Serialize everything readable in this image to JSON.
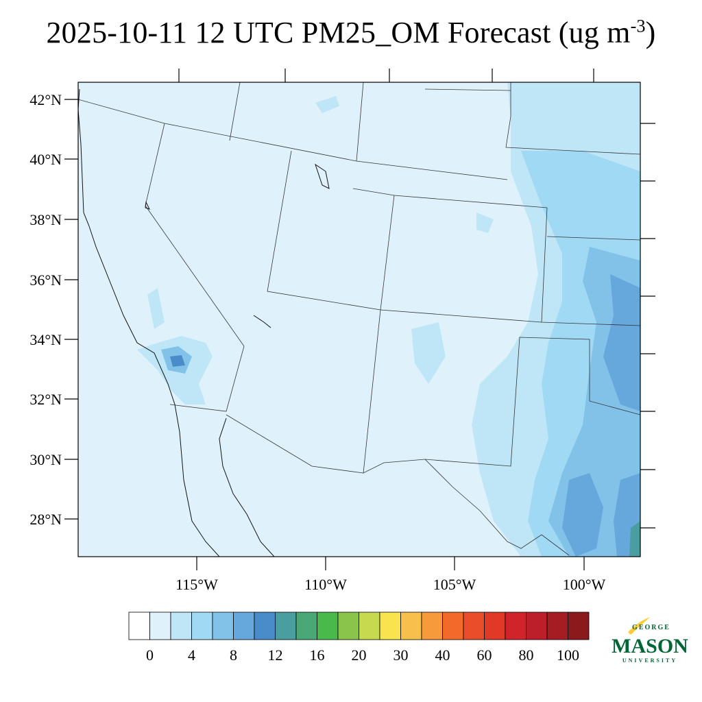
{
  "title": {
    "text": "2025-10-11 12 UTC PM25_OM Forecast (ug m",
    "exponent": "-3",
    "close": ")"
  },
  "map": {
    "lat_labels": [
      "42°N",
      "40°N",
      "38°N",
      "36°N",
      "34°N",
      "32°N",
      "30°N",
      "28°N"
    ],
    "lon_labels": [
      "115°W",
      "110°W",
      "105°W",
      "100°W"
    ]
  },
  "colorbar": {
    "colors": [
      "#ffffff",
      "#dff2fb",
      "#bfe6f7",
      "#9fd9f3",
      "#82c2e8",
      "#66a7dc",
      "#4a8cc9",
      "#4a9ea0",
      "#4aa876",
      "#48b94a",
      "#8ac44a",
      "#c6d94f",
      "#f7e44e",
      "#f8c04a",
      "#f79a3c",
      "#f26a2a",
      "#e94d2a",
      "#e03a27",
      "#d1242a",
      "#bd1f2a",
      "#a51c23",
      "#8c1a1d"
    ],
    "labels": [
      "0",
      "4",
      "8",
      "12",
      "16",
      "20",
      "30",
      "40",
      "60",
      "80",
      "100"
    ]
  },
  "logo": {
    "line1": "GEORGE",
    "line2": "MASON",
    "line3": "UNIVERSITY",
    "green": "#006633",
    "gold": "#ffcc33"
  }
}
